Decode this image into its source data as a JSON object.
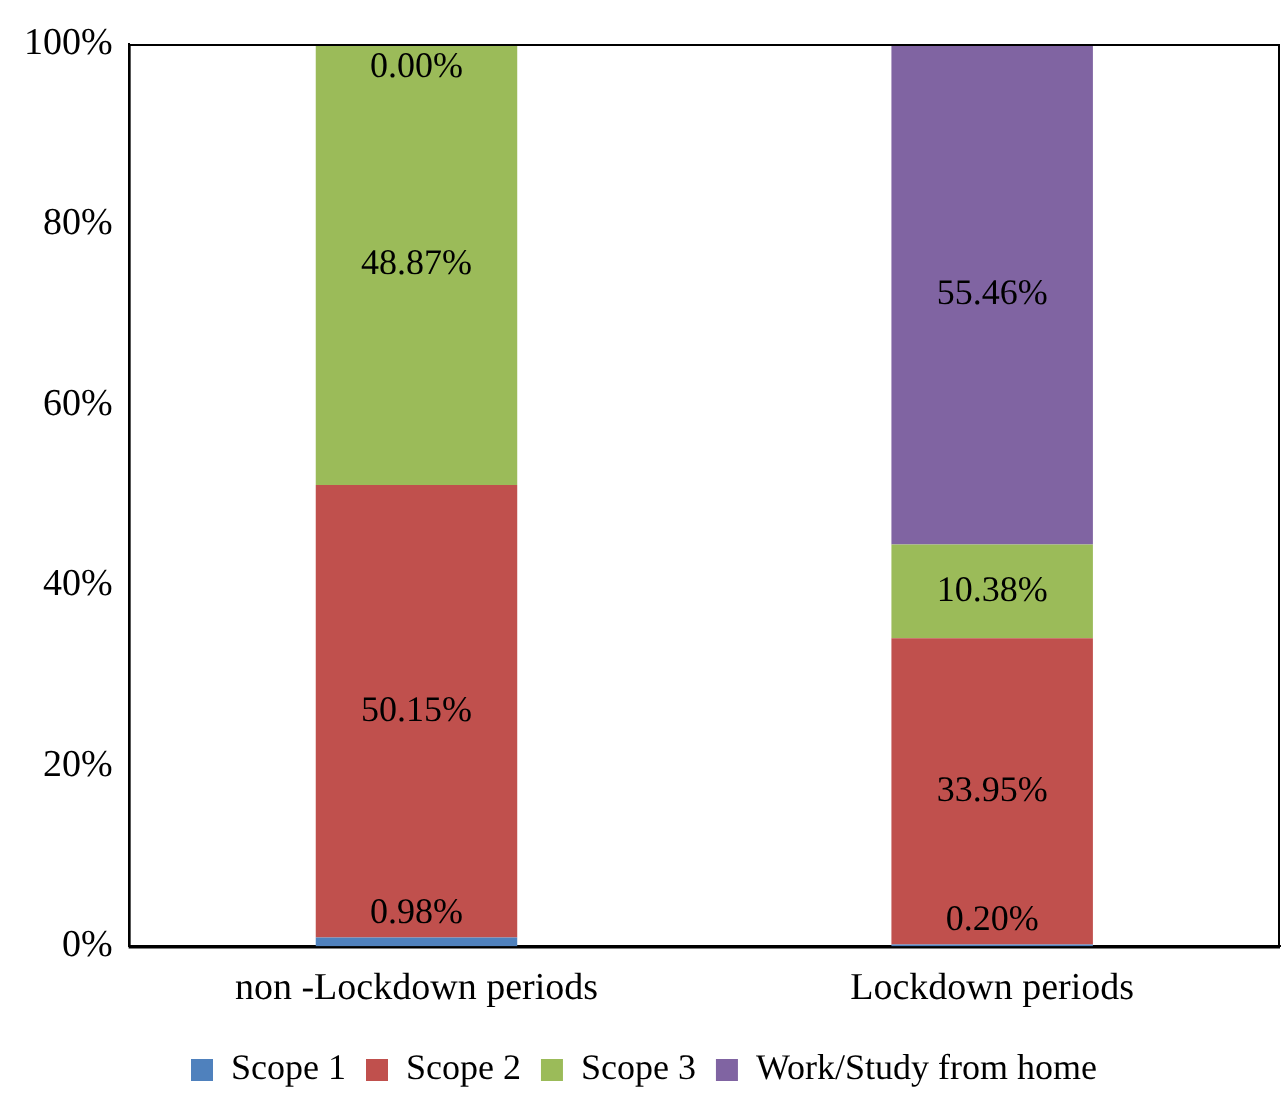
{
  "chart_data": {
    "type": "bar",
    "stacked": true,
    "categories": [
      "non -Lockdown periods",
      "Lockdown periods"
    ],
    "series": [
      {
        "name": "Scope 1",
        "color": "#4f81bd",
        "values": [
          0.98,
          0.2
        ],
        "value_labels": [
          "0.98%",
          "0.20%"
        ]
      },
      {
        "name": "Scope 2",
        "color": "#c0504d",
        "values": [
          50.15,
          33.95
        ],
        "value_labels": [
          "50.15%",
          "33.95%"
        ]
      },
      {
        "name": "Scope 3",
        "color": "#9bbb59",
        "values": [
          48.87,
          10.38
        ],
        "value_labels": [
          "48.87%",
          "10.38%"
        ]
      },
      {
        "name": "Work/Study from home",
        "color": "#8064a2",
        "values": [
          0,
          55.46
        ],
        "value_labels": [
          "0.00%",
          "55.46%"
        ]
      }
    ],
    "ylim": [
      0,
      100
    ],
    "yticks": [
      {
        "value": 0,
        "label": "0%"
      },
      {
        "value": 20,
        "label": "20%"
      },
      {
        "value": 40,
        "label": "40%"
      },
      {
        "value": 60,
        "label": "60%"
      },
      {
        "value": 80,
        "label": "80%"
      },
      {
        "value": 100,
        "label": "100%"
      }
    ],
    "grid": false,
    "legend": "bottom"
  }
}
